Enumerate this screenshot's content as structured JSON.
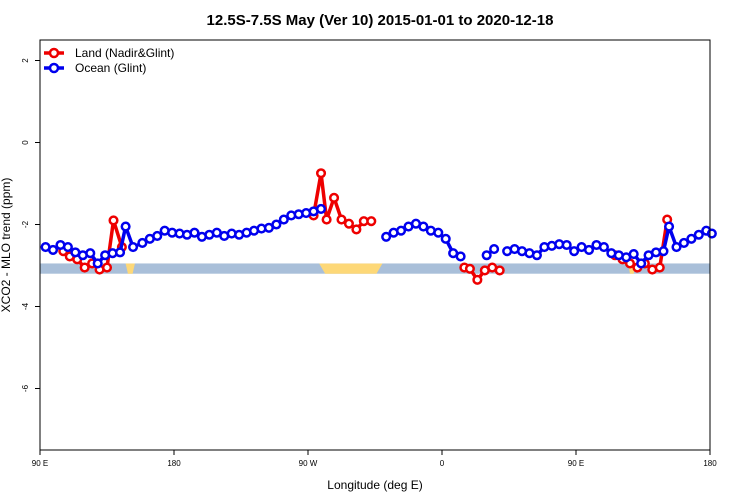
{
  "chart_data": {
    "type": "line",
    "title": "12.5S-7.5S May (Ver 10)   2015-01-01 to 2020-12-18",
    "xlabel": "Longitude (deg E)",
    "ylabel": "XCO2 - MLO trend (ppm)",
    "xlim": [
      90,
      450
    ],
    "ylim": [
      -7.5,
      2.5
    ],
    "x_ticks": [
      {
        "value": 90,
        "label": "90 E"
      },
      {
        "value": 162,
        "label": "180"
      },
      {
        "value": 234,
        "label": "90 W"
      },
      {
        "value": 306,
        "label": "0"
      },
      {
        "value": 378,
        "label": "90 E"
      },
      {
        "value": 450,
        "label": "180"
      }
    ],
    "y_ticks": [
      {
        "value": 2,
        "label": "2"
      },
      {
        "value": 0,
        "label": "0"
      },
      {
        "value": -2,
        "label": "-2"
      },
      {
        "value": -4,
        "label": "-4"
      },
      {
        "value": -6,
        "label": "-6"
      }
    ],
    "legend": {
      "placement": "top-left"
    },
    "background_band": {
      "y_range": [
        -2.95,
        -3.2
      ],
      "color": "#a9bfd9",
      "land_color": "#fdd878"
    },
    "land_regions": [
      {
        "x_range": [
          136,
          141
        ],
        "y_range": [
          -2.95,
          -3.2
        ]
      },
      {
        "x_range": [
          240,
          274
        ],
        "y_range": [
          -2.95,
          -3.2
        ]
      },
      {
        "x_range": [
          406,
          410
        ],
        "y_range": [
          -2.95,
          -3.2
        ]
      }
    ],
    "series": [
      {
        "name": "Land (Nadir&Glint)",
        "color": "#ee0000",
        "segments": [
          [
            [
              102.5,
              -2.65
            ],
            [
              106,
              -2.78
            ],
            [
              110,
              -2.85
            ],
            [
              114,
              -3.05
            ],
            [
              118,
              -2.95
            ],
            [
              122,
              -3.1
            ],
            [
              126,
              -3.05
            ],
            [
              129.5,
              -1.9
            ],
            [
              134,
              -2.55
            ]
          ],
          [
            [
              237,
              -1.78
            ],
            [
              241,
              -0.75
            ],
            [
              244,
              -1.88
            ],
            [
              248,
              -1.35
            ],
            [
              252,
              -1.88
            ],
            [
              256,
              -1.98
            ],
            [
              260,
              -2.12
            ],
            [
              264,
              -1.92
            ],
            [
              268,
              -1.92
            ]
          ],
          [
            [
              318,
              -3.05
            ],
            [
              321,
              -3.08
            ],
            [
              325,
              -3.35
            ],
            [
              329,
              -3.12
            ],
            [
              333,
              -3.05
            ],
            [
              337,
              -3.12
            ]
          ],
          [
            [
              399,
              -2.75
            ],
            [
              403,
              -2.85
            ],
            [
              407,
              -2.95
            ],
            [
              411,
              -3.05
            ],
            [
              415,
              -2.95
            ],
            [
              419,
              -3.1
            ],
            [
              423,
              -3.05
            ],
            [
              427,
              -1.88
            ]
          ]
        ]
      },
      {
        "name": "Ocean (Glint)",
        "color": "#0000ee",
        "segments": [
          [
            [
              93,
              -2.55
            ],
            [
              97,
              -2.62
            ],
            [
              101,
              -2.5
            ],
            [
              105,
              -2.55
            ],
            [
              109,
              -2.68
            ],
            [
              113,
              -2.75
            ],
            [
              117,
              -2.7
            ],
            [
              121,
              -2.95
            ],
            [
              125,
              -2.75
            ],
            [
              129,
              -2.7
            ],
            [
              133,
              -2.68
            ],
            [
              136,
              -2.05
            ],
            [
              140,
              -2.55
            ],
            [
              145,
              -2.45
            ],
            [
              149,
              -2.35
            ],
            [
              153,
              -2.28
            ],
            [
              157,
              -2.15
            ],
            [
              161,
              -2.2
            ],
            [
              165,
              -2.22
            ],
            [
              169,
              -2.25
            ],
            [
              173,
              -2.2
            ],
            [
              177,
              -2.3
            ],
            [
              181,
              -2.25
            ],
            [
              185,
              -2.2
            ],
            [
              189,
              -2.28
            ],
            [
              193,
              -2.22
            ],
            [
              197,
              -2.25
            ],
            [
              201,
              -2.2
            ],
            [
              205,
              -2.15
            ],
            [
              209,
              -2.1
            ],
            [
              213,
              -2.08
            ],
            [
              217,
              -2.0
            ],
            [
              221,
              -1.88
            ],
            [
              225,
              -1.78
            ],
            [
              229,
              -1.75
            ],
            [
              233,
              -1.72
            ],
            [
              237,
              -1.68
            ],
            [
              241,
              -1.62
            ]
          ],
          [
            [
              276,
              -2.3
            ],
            [
              280,
              -2.2
            ],
            [
              284,
              -2.15
            ],
            [
              288,
              -2.05
            ],
            [
              292,
              -1.98
            ],
            [
              296,
              -2.05
            ],
            [
              300,
              -2.15
            ],
            [
              304,
              -2.2
            ],
            [
              308,
              -2.35
            ],
            [
              312,
              -2.7
            ],
            [
              316,
              -2.78
            ]
          ],
          [
            [
              330,
              -2.75
            ],
            [
              334,
              -2.6
            ]
          ],
          [
            [
              341,
              -2.65
            ],
            [
              345,
              -2.6
            ],
            [
              349,
              -2.65
            ],
            [
              353,
              -2.7
            ],
            [
              357,
              -2.75
            ],
            [
              361,
              -2.55
            ],
            [
              365,
              -2.52
            ],
            [
              369,
              -2.48
            ],
            [
              373,
              -2.5
            ],
            [
              377,
              -2.65
            ],
            [
              381,
              -2.55
            ],
            [
              385,
              -2.62
            ],
            [
              389,
              -2.5
            ],
            [
              393,
              -2.55
            ],
            [
              397,
              -2.7
            ],
            [
              401,
              -2.75
            ],
            [
              405,
              -2.8
            ],
            [
              409,
              -2.72
            ],
            [
              413,
              -2.95
            ],
            [
              417,
              -2.75
            ],
            [
              421,
              -2.68
            ],
            [
              425,
              -2.65
            ],
            [
              428,
              -2.05
            ],
            [
              432,
              -2.55
            ],
            [
              436,
              -2.45
            ],
            [
              440,
              -2.35
            ],
            [
              444,
              -2.25
            ],
            [
              448,
              -2.15
            ],
            [
              451,
              -2.22
            ]
          ]
        ]
      }
    ]
  }
}
